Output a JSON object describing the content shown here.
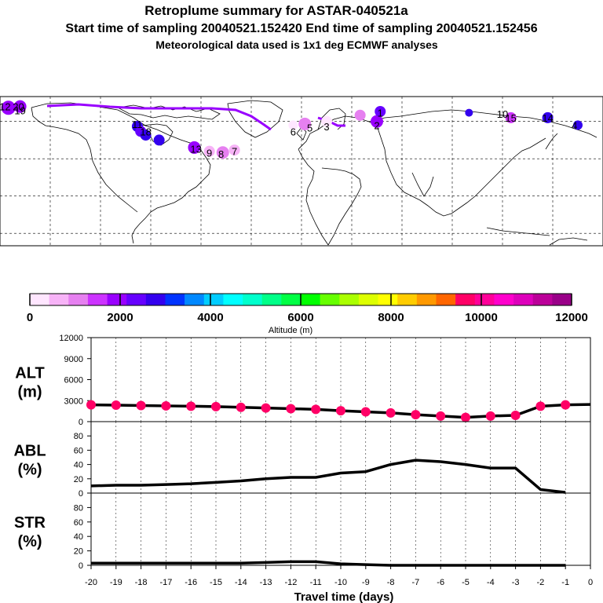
{
  "title": {
    "line1": "Retroplume summary for ASTAR-040521a",
    "line2": "Start time of sampling 20040521.152420     End time of sampling 20040521.152456",
    "line3": "Meteorological data used is 1x1 deg ECMWF analyses"
  },
  "colorbar": {
    "label": "Altitude (m)",
    "ticks": [
      "0",
      "2000",
      "4000",
      "6000",
      "8000",
      "10000",
      "12000"
    ],
    "colors": [
      "#ffe6ff",
      "#f7b3f7",
      "#e680f0",
      "#cc33ff",
      "#9900ff",
      "#6600ff",
      "#3300ee",
      "#0033ff",
      "#0088ff",
      "#00ccff",
      "#00ffff",
      "#00ffcc",
      "#00ff88",
      "#00ff44",
      "#00ff00",
      "#66ff00",
      "#aaff00",
      "#ddff00",
      "#ffff00",
      "#ffcc00",
      "#ff9900",
      "#ff6600",
      "#ff0066",
      "#ff0099",
      "#ff00cc",
      "#dd00bb",
      "#bb0099",
      "#990088"
    ]
  },
  "colors": {
    "trajectory": "#9900ff",
    "marker": "#ff0066",
    "line": "#000000"
  },
  "chart_data": [
    {
      "type": "map",
      "title": "Retroplume trajectory (lon/lat)",
      "points": [
        {
          "lon": -175,
          "lat": 71,
          "color": "#9900ff",
          "r": 9
        },
        {
          "lon": -168,
          "lat": 72,
          "color": "#9900ff",
          "r": 8
        },
        {
          "lon": -98,
          "lat": 56,
          "color": "#3300ee",
          "r": 7
        },
        {
          "lon": -96,
          "lat": 52,
          "color": "#6600ff",
          "r": 7
        },
        {
          "lon": -93,
          "lat": 49,
          "color": "#3300ee",
          "r": 7
        },
        {
          "lon": -85,
          "lat": 45,
          "color": "#3300ee",
          "r": 7
        },
        {
          "lon": -64,
          "lat": 39,
          "color": "#9900ff",
          "r": 8
        },
        {
          "lon": -55,
          "lat": 36,
          "color": "#f7b3f7",
          "r": 7
        },
        {
          "lon": -47,
          "lat": 35,
          "color": "#e680f0",
          "r": 8
        },
        {
          "lon": -40,
          "lat": 37,
          "color": "#f7b3f7",
          "r": 7
        },
        {
          "lon": -5,
          "lat": 57,
          "color": "#ffe6ff",
          "r": 6
        },
        {
          "lon": 2,
          "lat": 58,
          "color": "#e680f0",
          "r": 8
        },
        {
          "lon": 15,
          "lat": 60,
          "color": "#ffe6ff",
          "r": 7
        },
        {
          "lon": 35,
          "lat": 65,
          "color": "#e680f0",
          "r": 7
        },
        {
          "lon": 45,
          "lat": 60,
          "color": "#9900ff",
          "r": 8
        },
        {
          "lon": 47,
          "lat": 68,
          "color": "#6600ff",
          "r": 7
        },
        {
          "lon": 100,
          "lat": 67,
          "color": "#3300ee",
          "r": 5
        },
        {
          "lon": 125,
          "lat": 63,
          "color": "#cc33ff",
          "r": 7
        },
        {
          "lon": 147,
          "lat": 63,
          "color": "#3300ee",
          "r": 7
        },
        {
          "lon": 190,
          "lat": 70,
          "color": "#6600ff",
          "r": 8
        },
        {
          "lon": 190,
          "lat": 65,
          "color": "#ffe6ff",
          "r": 6
        },
        {
          "lon": 165,
          "lat": 57,
          "color": "#3300ee",
          "r": 6
        }
      ],
      "labels": [
        "12",
        "20",
        "11",
        "9",
        "8",
        "7",
        "6",
        "5",
        "3",
        "2",
        "1",
        "13",
        "16",
        "15",
        "14",
        "10",
        "4",
        "19",
        "18",
        "17"
      ]
    },
    {
      "type": "line+scatter",
      "ylabel": "ALT\n(m)",
      "ylim": [
        0,
        12000
      ],
      "yticks": [
        0,
        3000,
        6000,
        9000,
        12000
      ],
      "x": [
        -20,
        -19,
        -18,
        -17,
        -16,
        -15,
        -14,
        -13,
        -12,
        -11,
        -10,
        -9,
        -8,
        -7,
        -6,
        -5,
        -4,
        -3,
        -2,
        -1,
        0
      ],
      "values": [
        2400,
        2350,
        2300,
        2250,
        2200,
        2150,
        2050,
        1950,
        1850,
        1750,
        1550,
        1400,
        1250,
        1000,
        800,
        600,
        800,
        900,
        2200,
        2400,
        2450
      ]
    },
    {
      "type": "line",
      "ylabel": "ABL\n(%)",
      "ylim": [
        0,
        100
      ],
      "yticks": [
        0,
        20,
        40,
        60,
        80
      ],
      "x": [
        -20,
        -19,
        -18,
        -17,
        -16,
        -15,
        -14,
        -13,
        -12,
        -11,
        -10,
        -9,
        -8,
        -7,
        -6,
        -5,
        -4,
        -3,
        -2,
        -1
      ],
      "values": [
        10,
        11,
        11,
        12,
        13,
        15,
        17,
        20,
        22,
        22,
        28,
        30,
        40,
        46,
        44,
        40,
        35,
        35,
        5,
        1
      ]
    },
    {
      "type": "line",
      "ylabel": "STR\n(%)",
      "ylim": [
        0,
        100
      ],
      "yticks": [
        0,
        20,
        40,
        60,
        80
      ],
      "x": [
        -20,
        -19,
        -18,
        -17,
        -16,
        -15,
        -14,
        -13,
        -12,
        -11,
        -10,
        -9,
        -8,
        -7,
        -6,
        -5,
        -4,
        -3,
        -2,
        -1
      ],
      "values": [
        3,
        3,
        3,
        3,
        3,
        3,
        3,
        4,
        5,
        5,
        2,
        1,
        0,
        0,
        0,
        0,
        0,
        0,
        0,
        0
      ]
    }
  ],
  "xaxis": {
    "ticks": [
      "-20",
      "-19",
      "-18",
      "-17",
      "-16",
      "-15",
      "-14",
      "-13",
      "-12",
      "-11",
      "-10",
      "-9",
      "-8",
      "-7",
      "-6",
      "-5",
      "-4",
      "-3",
      "-2",
      "-1",
      "0"
    ],
    "label": "Travel time (days)"
  },
  "panels": {
    "alt": {
      "label1": "ALT",
      "label2": "(m)",
      "ticks": [
        "12000",
        "9000",
        "6000",
        "3000",
        "0"
      ]
    },
    "abl": {
      "label1": "ABL",
      "label2": "(%)",
      "ticks": [
        "80",
        "60",
        "40",
        "20",
        "0"
      ]
    },
    "str": {
      "label1": "STR",
      "label2": "(%)",
      "ticks": [
        "80",
        "60",
        "40",
        "20",
        "0"
      ]
    }
  },
  "map_labels": [
    {
      "text": "12",
      "lon": -177,
      "lat": 72
    },
    {
      "text": "20",
      "lon": -169,
      "lat": 72
    },
    {
      "text": "11",
      "lon": -98,
      "lat": 58
    },
    {
      "text": "13",
      "lon": -63,
      "lat": 38
    },
    {
      "text": "9",
      "lon": -55,
      "lat": 35
    },
    {
      "text": "8",
      "lon": -48,
      "lat": 34
    },
    {
      "text": "7",
      "lon": -40,
      "lat": 36
    },
    {
      "text": "6",
      "lon": -5,
      "lat": 52
    },
    {
      "text": "5",
      "lon": 5,
      "lat": 55
    },
    {
      "text": "3",
      "lon": 15,
      "lat": 56
    },
    {
      "text": "2",
      "lon": 45,
      "lat": 57
    },
    {
      "text": "1",
      "lon": 47,
      "lat": 67
    },
    {
      "text": "16",
      "lon": 190,
      "lat": 72
    },
    {
      "text": "13",
      "lon": 190,
      "lat": 66
    },
    {
      "text": "15",
      "lon": 125,
      "lat": 63
    },
    {
      "text": "14",
      "lon": 147,
      "lat": 63
    },
    {
      "text": "10",
      "lon": 120,
      "lat": 66
    },
    {
      "text": "4",
      "lon": 163,
      "lat": 57
    },
    {
      "text": "19",
      "lon": -168,
      "lat": 69
    },
    {
      "text": "18",
      "lon": -93,
      "lat": 52
    }
  ]
}
